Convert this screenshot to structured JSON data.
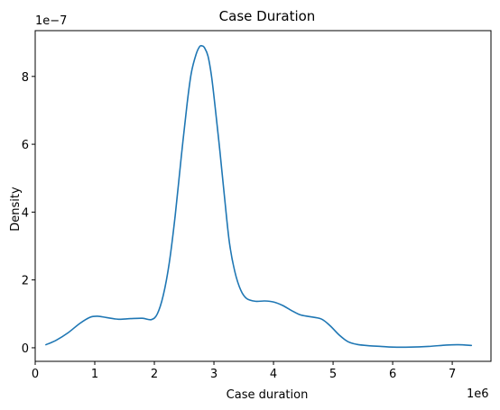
{
  "chart_data": {
    "type": "line",
    "title": "Case Duration",
    "xlabel": "Case duration",
    "ylabel": "Density",
    "x_multiplier_label": "1e6",
    "y_multiplier_label": "1e−7",
    "xlim": [
      -0.0,
      7.65
    ],
    "ylim": [
      -0.4,
      9.35
    ],
    "x_ticks": [
      {
        "value": 0,
        "label": "0"
      },
      {
        "value": 1,
        "label": "1"
      },
      {
        "value": 2,
        "label": "2"
      },
      {
        "value": 3,
        "label": "3"
      },
      {
        "value": 4,
        "label": "4"
      },
      {
        "value": 5,
        "label": "5"
      },
      {
        "value": 6,
        "label": "6"
      },
      {
        "value": 7,
        "label": "7"
      }
    ],
    "y_ticks": [
      {
        "value": 0,
        "label": "0"
      },
      {
        "value": 2,
        "label": "2"
      },
      {
        "value": 4,
        "label": "4"
      },
      {
        "value": 6,
        "label": "6"
      },
      {
        "value": 8,
        "label": "8"
      }
    ],
    "grid": false,
    "color": "#1f77b4",
    "series": [
      {
        "x": [
          0.18,
          0.35,
          0.55,
          0.75,
          0.92,
          1.05,
          1.2,
          1.4,
          1.6,
          1.8,
          1.95,
          2.05,
          2.15,
          2.25,
          2.35,
          2.45,
          2.55,
          2.62,
          2.7,
          2.76,
          2.8,
          2.84,
          2.9,
          2.96,
          3.02,
          3.1,
          3.18,
          3.26,
          3.35,
          3.45,
          3.55,
          3.7,
          3.85,
          4.0,
          4.15,
          4.3,
          4.45,
          4.6,
          4.8,
          4.95,
          5.1,
          5.25,
          5.4,
          5.6,
          5.8,
          6.0,
          6.3,
          6.6,
          6.9,
          7.1,
          7.32
        ],
        "y": [
          0.09,
          0.22,
          0.44,
          0.72,
          0.9,
          0.93,
          0.89,
          0.84,
          0.86,
          0.87,
          0.83,
          1.0,
          1.55,
          2.5,
          3.9,
          5.6,
          7.2,
          8.1,
          8.65,
          8.88,
          8.9,
          8.85,
          8.6,
          8.0,
          7.1,
          5.8,
          4.4,
          3.1,
          2.25,
          1.7,
          1.45,
          1.37,
          1.38,
          1.35,
          1.25,
          1.1,
          0.97,
          0.92,
          0.85,
          0.65,
          0.38,
          0.18,
          0.1,
          0.06,
          0.04,
          0.02,
          0.02,
          0.04,
          0.08,
          0.09,
          0.07
        ]
      }
    ]
  }
}
